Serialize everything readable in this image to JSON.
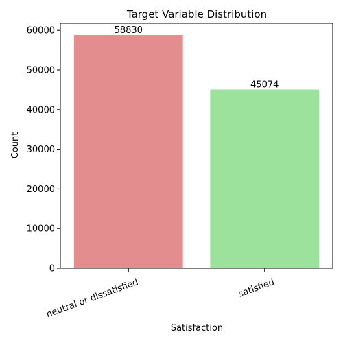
{
  "chart_data": {
    "type": "bar",
    "title": "Target Variable Distribution",
    "xlabel": "Satisfaction",
    "ylabel": "Count",
    "categories": [
      "neutral or dissatisfied",
      "satisfied"
    ],
    "values": [
      58830,
      45074
    ],
    "data_labels": [
      "58830",
      "45074"
    ],
    "bar_colors": [
      "#e38d8e",
      "#9ce29c"
    ],
    "ylim": [
      0,
      61766
    ],
    "yticks": [
      0,
      10000,
      20000,
      30000,
      40000,
      50000,
      60000
    ],
    "ytick_labels": [
      "0",
      "10000",
      "20000",
      "30000",
      "40000",
      "50000",
      "60000"
    ],
    "grid": false,
    "legend": "none"
  }
}
